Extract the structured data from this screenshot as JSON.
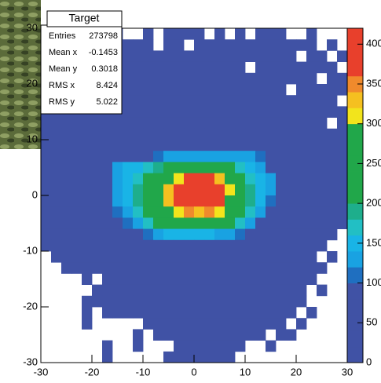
{
  "chart_data": {
    "type": "heatmap",
    "xlim": [
      -30,
      30
    ],
    "ylim": [
      -30,
      30
    ],
    "xticks": [
      -30,
      -20,
      -10,
      0,
      10,
      20,
      30
    ],
    "yticks": [
      -30,
      -20,
      -10,
      0,
      10,
      20,
      30
    ],
    "zlim": [
      0,
      420
    ],
    "zticks": [
      0,
      50,
      100,
      150,
      200,
      250,
      300,
      350,
      400
    ],
    "palette": [
      "#4052a5",
      "#4052a5",
      "#4052a5",
      "#4052a5",
      "#4052a5",
      "#1f6fc0",
      "#19a2e2",
      "#19b4e6",
      "#22bfc4",
      "#1eae8c",
      "#21a74a",
      "#21a74a",
      "#21a74a",
      "#21a74a",
      "#21a74a",
      "#f2e41c",
      "#f5c020",
      "#f08a2c",
      "#e8402c",
      "#e8402c",
      "#e8402c"
    ],
    "z": [
      [
        20,
        20,
        20,
        20,
        20,
        20,
        20,
        20,
        0,
        0,
        20,
        0,
        20,
        20,
        20,
        20,
        0,
        20,
        0,
        20,
        0,
        20,
        20,
        20,
        0,
        0,
        20,
        0,
        0,
        0
      ],
      [
        20,
        20,
        20,
        20,
        20,
        20,
        20,
        20,
        20,
        20,
        20,
        0,
        20,
        20,
        0,
        20,
        20,
        20,
        20,
        20,
        20,
        20,
        20,
        20,
        20,
        20,
        20,
        0,
        20,
        0
      ],
      [
        20,
        20,
        20,
        20,
        20,
        20,
        20,
        20,
        20,
        20,
        20,
        20,
        20,
        20,
        20,
        20,
        20,
        20,
        20,
        20,
        20,
        20,
        20,
        20,
        20,
        0,
        20,
        20,
        0,
        20
      ],
      [
        20,
        20,
        20,
        20,
        20,
        20,
        20,
        20,
        20,
        20,
        20,
        20,
        20,
        20,
        20,
        20,
        20,
        20,
        20,
        20,
        0,
        20,
        20,
        20,
        20,
        20,
        20,
        20,
        20,
        0
      ],
      [
        20,
        20,
        20,
        20,
        20,
        20,
        20,
        20,
        20,
        20,
        20,
        20,
        20,
        20,
        20,
        20,
        20,
        20,
        20,
        20,
        20,
        20,
        20,
        20,
        20,
        20,
        20,
        0,
        20,
        20
      ],
      [
        20,
        20,
        20,
        20,
        20,
        20,
        20,
        20,
        20,
        20,
        20,
        20,
        20,
        20,
        20,
        20,
        20,
        20,
        20,
        20,
        20,
        20,
        20,
        20,
        0,
        20,
        20,
        20,
        20,
        20
      ],
      [
        20,
        20,
        20,
        20,
        20,
        20,
        20,
        20,
        20,
        20,
        20,
        20,
        20,
        20,
        20,
        20,
        20,
        20,
        20,
        20,
        20,
        20,
        20,
        20,
        20,
        20,
        20,
        20,
        20,
        0
      ],
      [
        20,
        20,
        20,
        20,
        20,
        20,
        20,
        20,
        20,
        20,
        20,
        20,
        20,
        20,
        20,
        20,
        20,
        20,
        20,
        20,
        20,
        20,
        20,
        20,
        20,
        20,
        20,
        20,
        20,
        20
      ],
      [
        20,
        20,
        20,
        20,
        20,
        20,
        20,
        20,
        20,
        20,
        20,
        20,
        20,
        20,
        20,
        20,
        20,
        20,
        20,
        20,
        20,
        20,
        20,
        20,
        20,
        20,
        20,
        20,
        0,
        20
      ],
      [
        20,
        20,
        20,
        20,
        20,
        20,
        20,
        20,
        20,
        20,
        20,
        20,
        20,
        20,
        20,
        20,
        20,
        20,
        20,
        20,
        20,
        20,
        20,
        20,
        20,
        20,
        20,
        20,
        20,
        20
      ],
      [
        20,
        20,
        20,
        20,
        20,
        20,
        20,
        20,
        20,
        20,
        20,
        20,
        20,
        20,
        20,
        20,
        20,
        20,
        20,
        20,
        20,
        20,
        20,
        20,
        20,
        20,
        20,
        20,
        20,
        20
      ],
      [
        20,
        20,
        20,
        20,
        20,
        20,
        20,
        20,
        20,
        20,
        20,
        110,
        130,
        130,
        130,
        130,
        130,
        130,
        130,
        130,
        130,
        110,
        20,
        20,
        20,
        20,
        20,
        20,
        20,
        20
      ],
      [
        20,
        20,
        20,
        20,
        20,
        20,
        20,
        130,
        140,
        150,
        160,
        190,
        220,
        240,
        250,
        250,
        240,
        220,
        200,
        170,
        140,
        120,
        20,
        20,
        20,
        20,
        20,
        20,
        20,
        20
      ],
      [
        20,
        20,
        20,
        20,
        20,
        20,
        20,
        130,
        150,
        170,
        200,
        240,
        270,
        310,
        370,
        380,
        370,
        320,
        260,
        220,
        170,
        140,
        120,
        20,
        20,
        20,
        20,
        20,
        20,
        20
      ],
      [
        20,
        20,
        20,
        20,
        20,
        20,
        20,
        130,
        150,
        180,
        220,
        260,
        330,
        380,
        400,
        410,
        400,
        380,
        300,
        240,
        180,
        150,
        130,
        20,
        20,
        20,
        20,
        20,
        20,
        20
      ],
      [
        20,
        20,
        20,
        20,
        20,
        20,
        20,
        120,
        150,
        180,
        220,
        260,
        320,
        380,
        400,
        410,
        400,
        380,
        290,
        230,
        180,
        140,
        110,
        20,
        20,
        20,
        20,
        20,
        20,
        20
      ],
      [
        20,
        20,
        20,
        20,
        20,
        20,
        20,
        110,
        130,
        160,
        200,
        240,
        280,
        310,
        340,
        320,
        350,
        310,
        260,
        210,
        160,
        130,
        20,
        20,
        20,
        20,
        20,
        20,
        20,
        20
      ],
      [
        20,
        20,
        20,
        20,
        20,
        20,
        20,
        20,
        110,
        130,
        170,
        210,
        230,
        240,
        250,
        250,
        240,
        230,
        200,
        160,
        120,
        20,
        20,
        20,
        20,
        20,
        20,
        20,
        20,
        20
      ],
      [
        20,
        20,
        20,
        20,
        20,
        20,
        20,
        20,
        20,
        20,
        110,
        130,
        140,
        150,
        150,
        150,
        140,
        130,
        120,
        110,
        20,
        20,
        20,
        20,
        20,
        20,
        20,
        20,
        20,
        0
      ],
      [
        20,
        20,
        20,
        20,
        20,
        20,
        20,
        20,
        20,
        20,
        20,
        20,
        20,
        20,
        20,
        20,
        20,
        20,
        20,
        20,
        20,
        20,
        20,
        20,
        20,
        20,
        20,
        20,
        0,
        0
      ],
      [
        0,
        20,
        20,
        20,
        20,
        20,
        20,
        20,
        20,
        20,
        20,
        20,
        20,
        20,
        20,
        20,
        20,
        20,
        20,
        20,
        20,
        20,
        20,
        20,
        20,
        20,
        20,
        0,
        20,
        0
      ],
      [
        0,
        0,
        20,
        20,
        20,
        20,
        20,
        20,
        20,
        20,
        20,
        20,
        20,
        20,
        20,
        20,
        20,
        20,
        20,
        20,
        20,
        20,
        20,
        20,
        20,
        20,
        20,
        20,
        0,
        0
      ],
      [
        0,
        0,
        0,
        0,
        20,
        0,
        20,
        20,
        20,
        20,
        20,
        20,
        20,
        20,
        20,
        20,
        20,
        20,
        20,
        20,
        20,
        20,
        20,
        20,
        20,
        20,
        20,
        0,
        0,
        0
      ],
      [
        0,
        0,
        0,
        0,
        0,
        20,
        20,
        20,
        20,
        20,
        20,
        20,
        20,
        20,
        20,
        20,
        20,
        20,
        20,
        20,
        20,
        20,
        20,
        20,
        20,
        20,
        0,
        20,
        0,
        0
      ],
      [
        0,
        0,
        0,
        0,
        20,
        20,
        20,
        20,
        20,
        20,
        20,
        20,
        20,
        20,
        20,
        20,
        20,
        20,
        20,
        20,
        20,
        20,
        20,
        20,
        20,
        20,
        0,
        0,
        0,
        0
      ],
      [
        0,
        0,
        0,
        0,
        20,
        0,
        20,
        20,
        20,
        20,
        20,
        20,
        20,
        20,
        20,
        20,
        20,
        20,
        20,
        20,
        20,
        20,
        20,
        20,
        20,
        0,
        20,
        0,
        0,
        0
      ],
      [
        0,
        0,
        0,
        0,
        20,
        0,
        0,
        0,
        0,
        0,
        20,
        20,
        20,
        20,
        20,
        20,
        20,
        20,
        20,
        20,
        20,
        20,
        20,
        20,
        0,
        20,
        0,
        0,
        0,
        0
      ],
      [
        0,
        0,
        0,
        0,
        0,
        0,
        0,
        0,
        0,
        20,
        0,
        20,
        20,
        20,
        20,
        20,
        20,
        20,
        20,
        20,
        20,
        20,
        0,
        20,
        20,
        0,
        0,
        0,
        0,
        0
      ],
      [
        0,
        0,
        0,
        0,
        0,
        0,
        20,
        0,
        0,
        20,
        0,
        0,
        0,
        20,
        20,
        20,
        20,
        20,
        20,
        20,
        0,
        0,
        20,
        0,
        0,
        0,
        0,
        0,
        0,
        0
      ],
      [
        0,
        0,
        0,
        0,
        0,
        0,
        20,
        0,
        0,
        0,
        0,
        0,
        20,
        20,
        20,
        20,
        20,
        20,
        20,
        0,
        0,
        0,
        0,
        0,
        0,
        0,
        0,
        0,
        0,
        0
      ]
    ],
    "stats": {
      "title": "Target",
      "rows": [
        [
          "Entries",
          273798
        ],
        [
          "Mean x",
          -0.1453
        ],
        [
          "Mean y",
          0.3018
        ],
        [
          "RMS x",
          8.424
        ],
        [
          "RMS y",
          5.022
        ]
      ]
    }
  }
}
